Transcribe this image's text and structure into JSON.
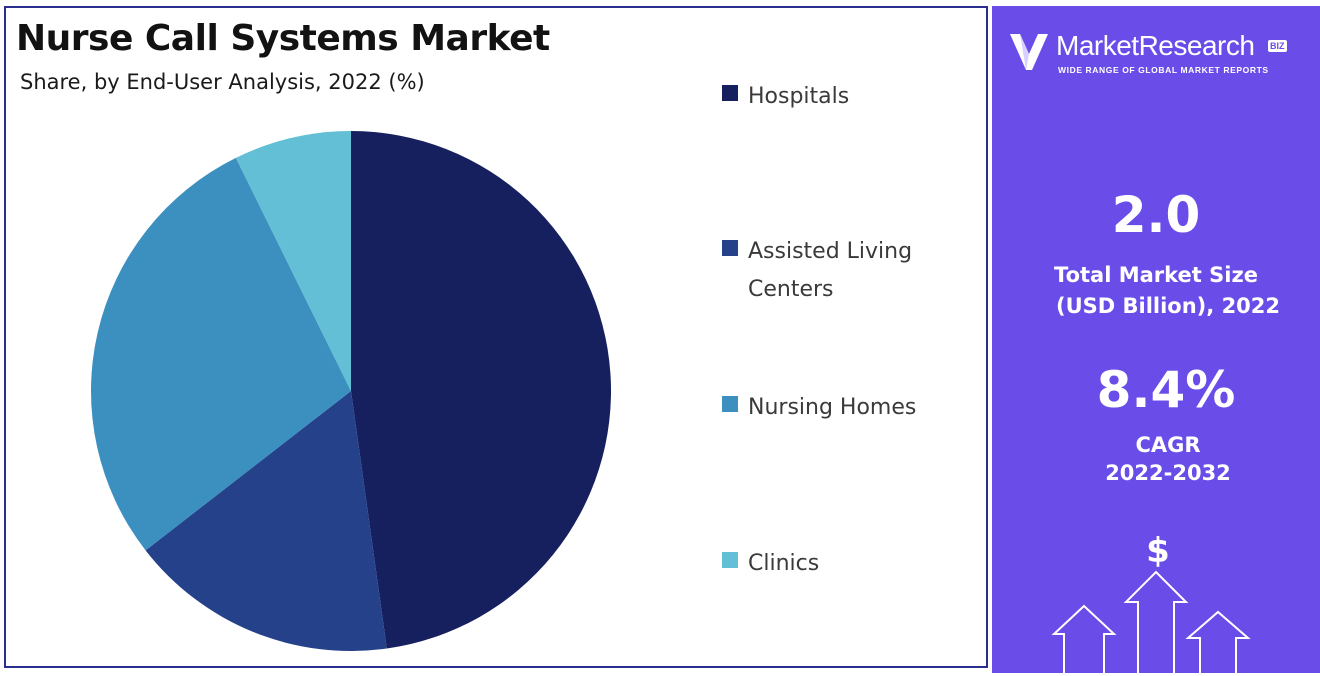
{
  "chart_data": {
    "type": "pie",
    "title": "Nurse Call Systems Market",
    "subtitle": "Share, by End-User Analysis, 2022 (%)",
    "categories": [
      "Hospitals",
      "Assisted Living Centers",
      "Nursing Homes",
      "Clinics"
    ],
    "values": [
      47.8,
      16.7,
      28.2,
      7.3
    ],
    "colors": [
      "#16205f",
      "#24418a",
      "#3b90c0",
      "#62bfd6"
    ],
    "legend_position": "right",
    "start_angle_deg": 0,
    "direction": "clockwise"
  },
  "legend": [
    {
      "label": "Hospitals",
      "color": "#16205f"
    },
    {
      "label": "Assisted Living Centers",
      "color": "#24418a"
    },
    {
      "label": "Nursing Homes",
      "color": "#3b90c0"
    },
    {
      "label": "Clinics",
      "color": "#62bfd6"
    }
  ],
  "info_panel": {
    "background": "#6a4de8",
    "logo": {
      "name": "MarketResearch",
      "badge": "BIZ",
      "tagline": "WIDE RANGE OF GLOBAL MARKET REPORTS",
      "icon": "logo-mark-icon"
    },
    "market_size": {
      "value": "2.0",
      "label_line1": "Total Market Size",
      "label_line2": "(USD Billion), 2022"
    },
    "cagr": {
      "value": "8.4%",
      "label_line1": "CAGR",
      "label_line2": "2022-2032"
    },
    "decor_icon": "dollar-growth-arrows-icon",
    "decor_symbol": "$"
  }
}
